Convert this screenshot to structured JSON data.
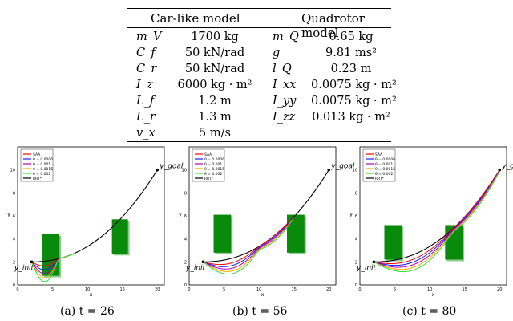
{
  "table": {
    "headers": [
      "Car-like model",
      "Quadrotor model"
    ],
    "rows": [
      {
        "s1": "m_V",
        "v1": "1700 kg",
        "s2": "m_Q",
        "v2": "0.65 kg"
      },
      {
        "s1": "C_f",
        "v1": "50 kN/rad",
        "s2": "g",
        "v2": "9.81 ms²"
      },
      {
        "s1": "C_r",
        "v1": "50 kN/rad",
        "s2": "l_Q",
        "v2": "0.23 m"
      },
      {
        "s1": "I_z",
        "v1": "6000 kg · m²",
        "s2": "I_xx",
        "v2": "0.0075 kg · m²"
      },
      {
        "s1": "L_f",
        "v1": "1.2 m",
        "s2": "I_yy",
        "v2": "0.0075 kg · m²"
      },
      {
        "s1": "L_r",
        "v1": "1.3 m",
        "s2": "I_zz",
        "v2": "0.013 kg · m²"
      },
      {
        "s1": "v_x",
        "v1": "5 m/s",
        "s2": "",
        "v2": ""
      }
    ]
  },
  "legend": [
    "SAA",
    "θ = 0.0006",
    "θ = 0.001",
    "θ = 0.0015",
    "θ = 0.002",
    "RRT*"
  ],
  "legend_colors": [
    "#ff0000",
    "#1a1aff",
    "#b000b0",
    "#ffa500",
    "#33dd33",
    "#000000"
  ],
  "axis": {
    "xlabel": "x",
    "ylabel": "y",
    "xticks": [
      "0",
      "5",
      "10",
      "15",
      "20"
    ],
    "yticks": [
      "0",
      "2",
      "4",
      "6",
      "8",
      "10"
    ]
  },
  "labels": {
    "goal": "y_goal",
    "init": "y_init"
  },
  "captions": [
    "(a) t = 26",
    "(b) t = 56",
    "(c) t = 80"
  ]
}
